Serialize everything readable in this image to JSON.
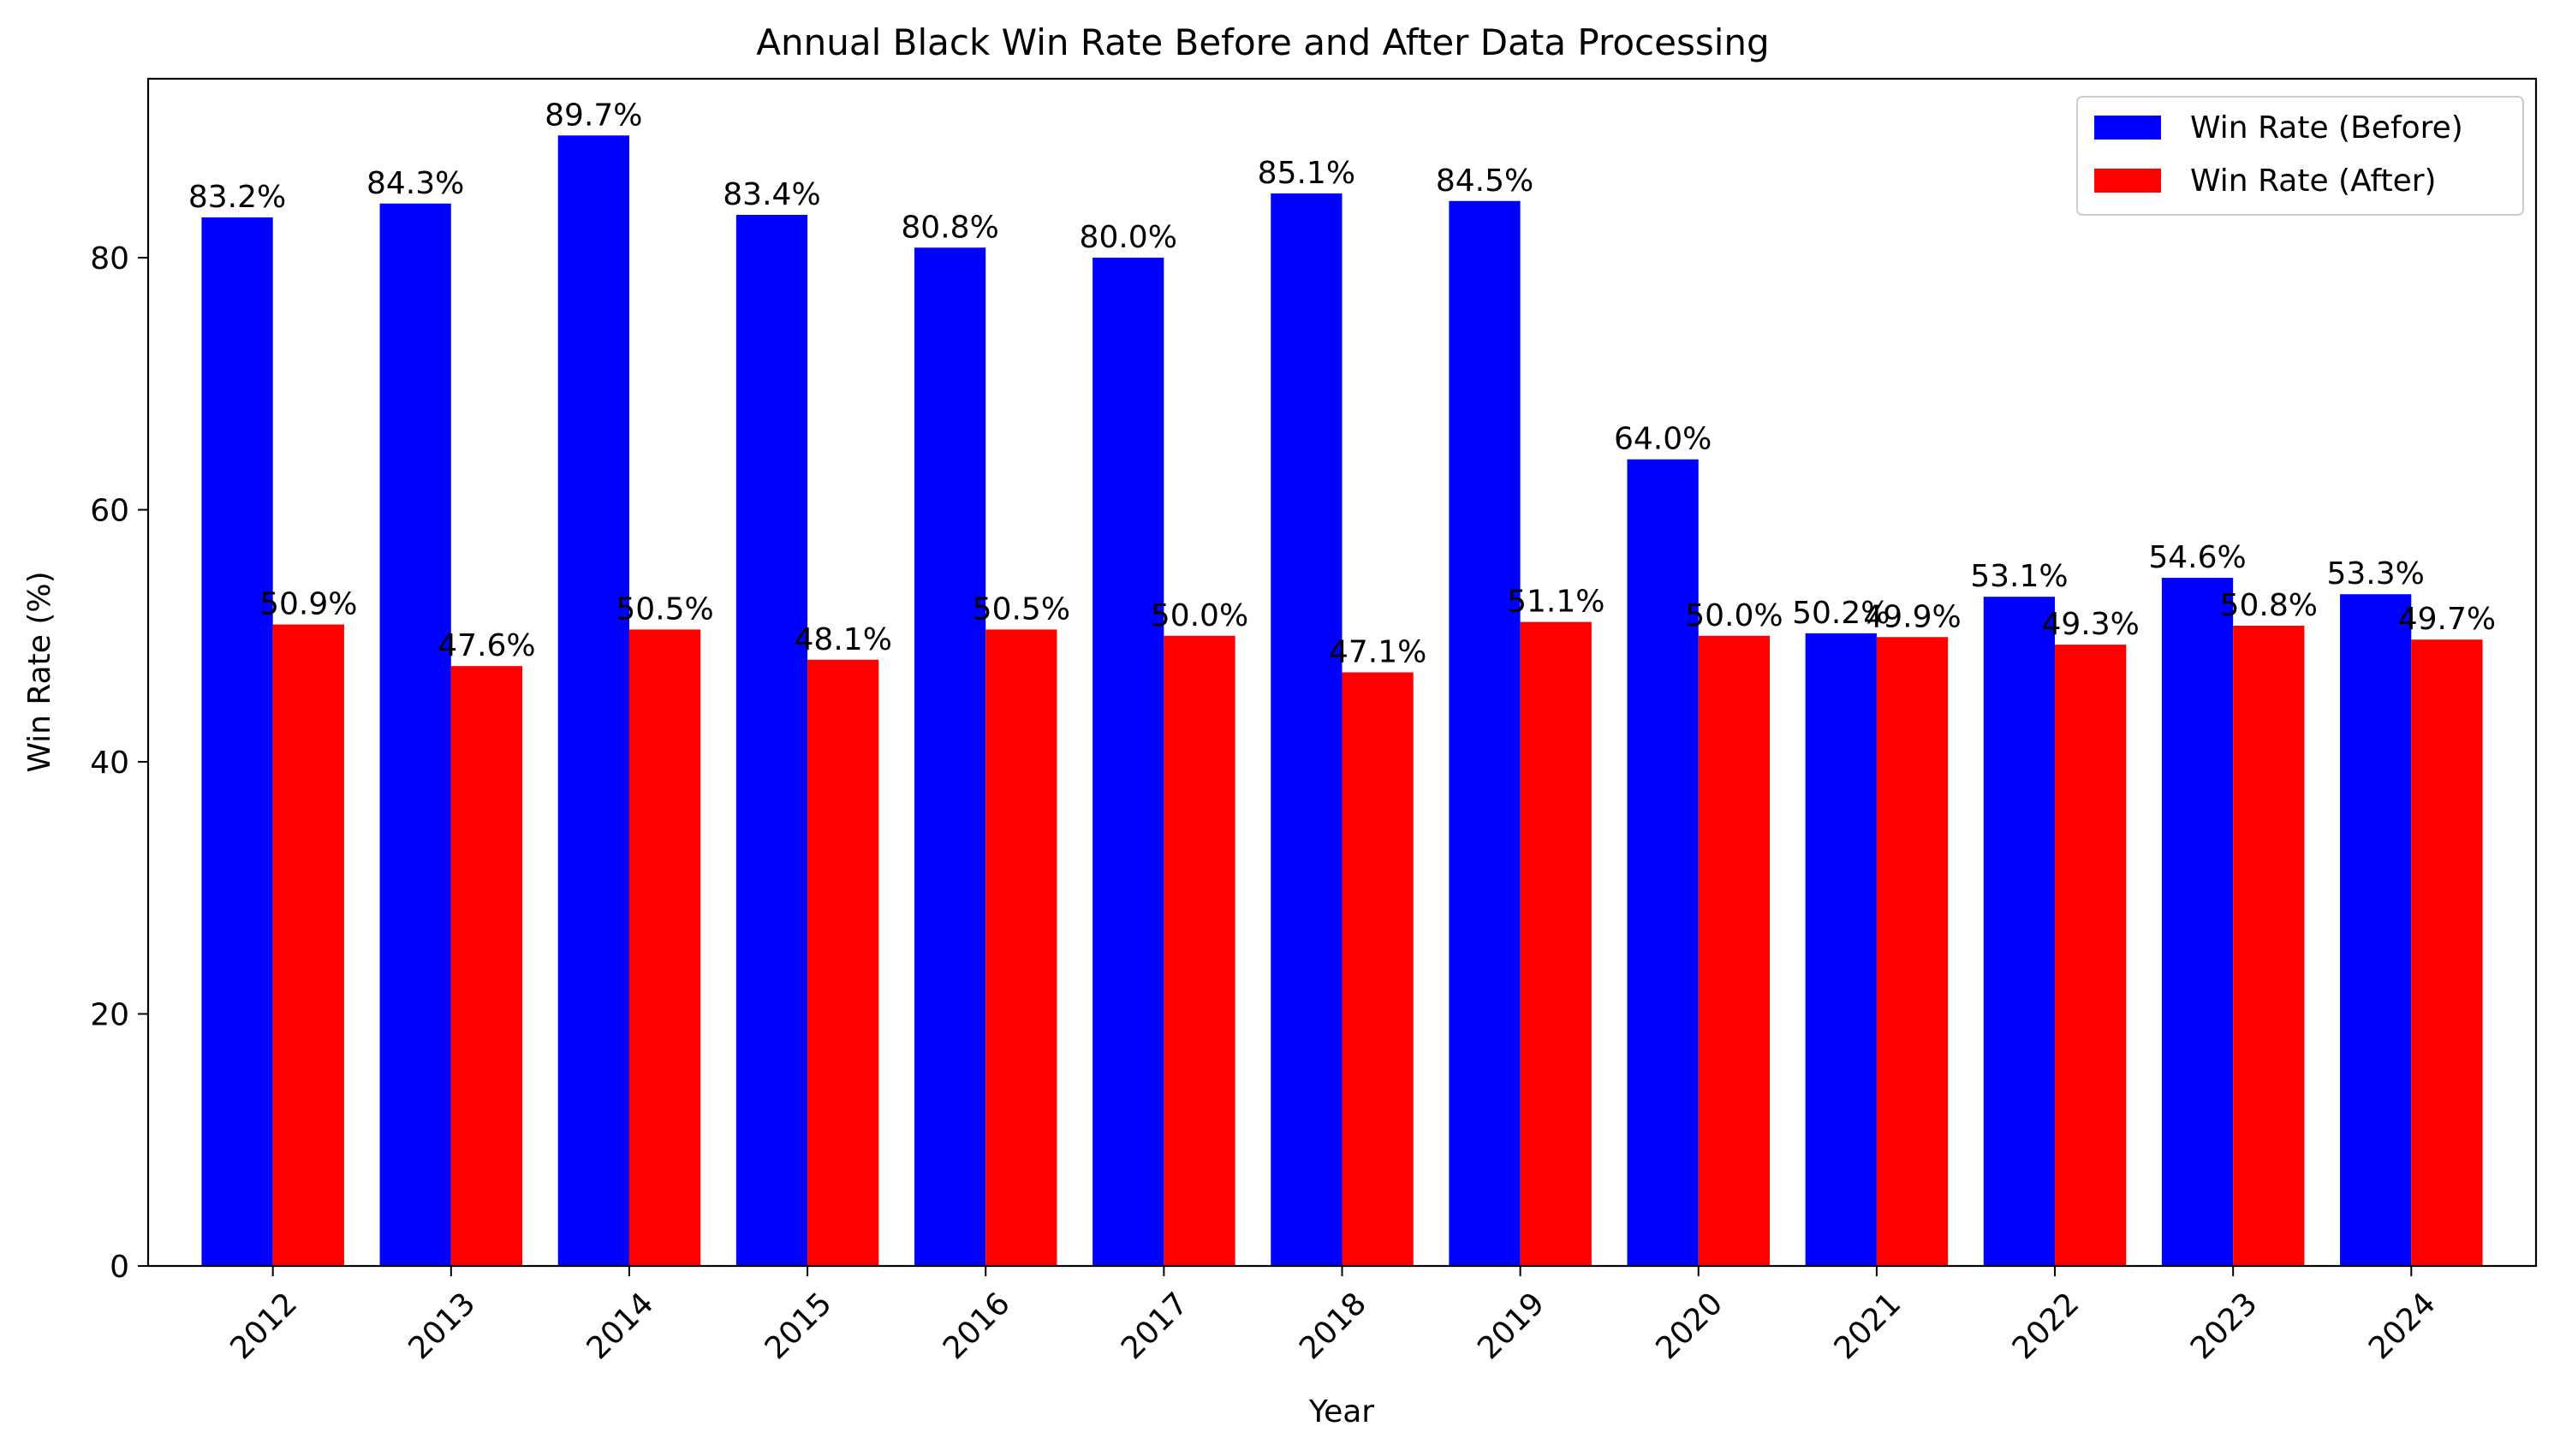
{
  "chart_data": {
    "type": "bar",
    "title": "Annual Black Win Rate Before and After Data Processing",
    "xlabel": "Year",
    "ylabel": "Win Rate (%)",
    "categories": [
      "2012",
      "2013",
      "2014",
      "2015",
      "2016",
      "2017",
      "2018",
      "2019",
      "2020",
      "2021",
      "2022",
      "2023",
      "2024"
    ],
    "series": [
      {
        "name": "Win Rate (Before)",
        "color": "#0000ff",
        "values": [
          83.2,
          84.3,
          89.7,
          83.4,
          80.8,
          80.0,
          85.1,
          84.5,
          64.0,
          50.2,
          53.1,
          54.6,
          53.3
        ],
        "labels": [
          "83.2%",
          "84.3%",
          "89.7%",
          "83.4%",
          "80.8%",
          "80.0%",
          "85.1%",
          "84.5%",
          "64.0%",
          "50.2%",
          "53.1%",
          "54.6%",
          "53.3%"
        ]
      },
      {
        "name": "Win Rate (After)",
        "color": "#ff0000",
        "values": [
          50.9,
          47.6,
          50.5,
          48.1,
          50.5,
          50.0,
          47.1,
          51.1,
          50.0,
          49.9,
          49.3,
          50.8,
          49.7
        ],
        "labels": [
          "50.9%",
          "47.6%",
          "50.5%",
          "48.1%",
          "50.5%",
          "50.0%",
          "47.1%",
          "51.1%",
          "50.0%",
          "49.9%",
          "49.3%",
          "50.8%",
          "49.7%"
        ]
      }
    ],
    "ylim": [
      0,
      94.2
    ],
    "yticks": [
      0,
      20,
      40,
      60,
      80
    ],
    "ytick_labels": [
      "0",
      "20",
      "40",
      "60",
      "80"
    ],
    "xtick_rotation": 45,
    "grid": false,
    "legend_position": "top-right"
  }
}
